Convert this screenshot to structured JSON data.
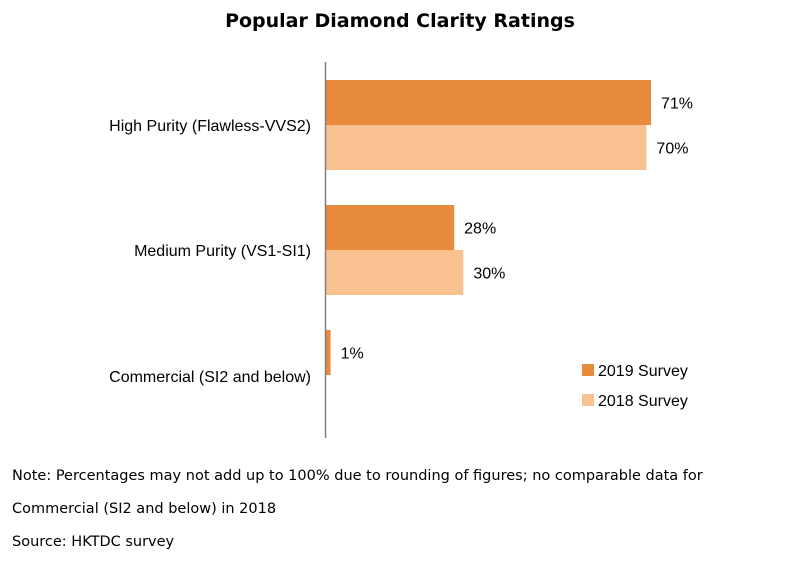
{
  "chart_data": {
    "type": "bar",
    "orientation": "horizontal",
    "title": "Popular Diamond Clarity Ratings",
    "categories": [
      "High Purity (Flawless-VVS2)",
      "Medium Purity (VS1-SI1)",
      "Commercial (SI2 and below)"
    ],
    "series": [
      {
        "name": "2019 Survey",
        "values": [
          71,
          28,
          1
        ],
        "labels": [
          "71%",
          "28%",
          "1%"
        ],
        "color": "#E98B3D"
      },
      {
        "name": "2018 Survey",
        "values": [
          70,
          30,
          null
        ],
        "labels": [
          "70%",
          "30%",
          ""
        ],
        "color": "#F9C090"
      }
    ],
    "xlim": [
      0,
      100
    ],
    "xlabel": "",
    "ylabel": "",
    "grid": false,
    "legend_position": "bottom-right"
  },
  "notes": {
    "line1": "Note: Percentages may not add up to 100% due to rounding of figures; no comparable data for",
    "line2": "Commercial (SI2 and below) in 2018",
    "source": "Source: HKTDC survey"
  }
}
